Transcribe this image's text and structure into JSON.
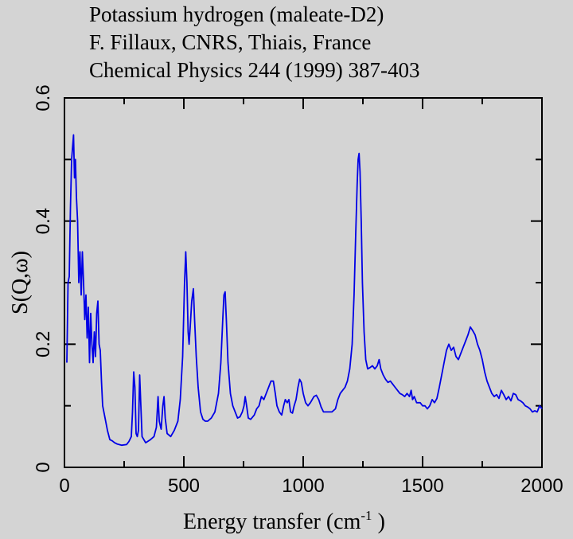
{
  "chart_data": {
    "type": "line",
    "title_lines": [
      "Potassium hydrogen (maleate-D2)",
      "F. Fillaux, CNRS, Thiais, France",
      "Chemical Physics  244 (1999) 387-403"
    ],
    "xlabel": "Energy transfer (cm",
    "xlabel_sup": "-1",
    "xlabel_close": " )",
    "ylabel": "S(Q,ω)",
    "xlim": [
      0,
      2000
    ],
    "ylim": [
      0,
      0.6
    ],
    "xticks": [
      0,
      500,
      1000,
      1500,
      2000
    ],
    "xtick_labels": [
      "0",
      "500",
      "1000",
      "1500",
      "2000"
    ],
    "yticks": [
      0,
      0.2,
      0.4,
      0.6
    ],
    "ytick_labels": [
      "0",
      "0.2",
      "0.4",
      "0.6"
    ],
    "grid": false,
    "series": [
      {
        "name": "S(Q,w)",
        "color": "#0000e6",
        "points": [
          [
            10,
            0.17
          ],
          [
            15,
            0.3
          ],
          [
            20,
            0.31
          ],
          [
            25,
            0.42
          ],
          [
            30,
            0.5
          ],
          [
            34,
            0.52
          ],
          [
            38,
            0.54
          ],
          [
            42,
            0.47
          ],
          [
            46,
            0.5
          ],
          [
            50,
            0.44
          ],
          [
            55,
            0.4
          ],
          [
            60,
            0.3
          ],
          [
            65,
            0.35
          ],
          [
            70,
            0.28
          ],
          [
            75,
            0.35
          ],
          [
            80,
            0.3
          ],
          [
            85,
            0.24
          ],
          [
            90,
            0.28
          ],
          [
            95,
            0.21
          ],
          [
            100,
            0.26
          ],
          [
            105,
            0.17
          ],
          [
            110,
            0.25
          ],
          [
            115,
            0.2
          ],
          [
            120,
            0.17
          ],
          [
            125,
            0.22
          ],
          [
            130,
            0.18
          ],
          [
            135,
            0.25
          ],
          [
            140,
            0.27
          ],
          [
            145,
            0.2
          ],
          [
            150,
            0.19
          ],
          [
            155,
            0.14
          ],
          [
            160,
            0.1
          ],
          [
            170,
            0.08
          ],
          [
            180,
            0.06
          ],
          [
            190,
            0.045
          ],
          [
            200,
            0.043
          ],
          [
            210,
            0.04
          ],
          [
            220,
            0.038
          ],
          [
            240,
            0.036
          ],
          [
            260,
            0.037
          ],
          [
            270,
            0.042
          ],
          [
            280,
            0.05
          ],
          [
            285,
            0.09
          ],
          [
            290,
            0.155
          ],
          [
            295,
            0.13
          ],
          [
            300,
            0.055
          ],
          [
            305,
            0.05
          ],
          [
            310,
            0.06
          ],
          [
            315,
            0.15
          ],
          [
            320,
            0.1
          ],
          [
            325,
            0.05
          ],
          [
            340,
            0.04
          ],
          [
            360,
            0.045
          ],
          [
            375,
            0.05
          ],
          [
            385,
            0.065
          ],
          [
            392,
            0.115
          ],
          [
            397,
            0.075
          ],
          [
            405,
            0.062
          ],
          [
            412,
            0.1
          ],
          [
            417,
            0.115
          ],
          [
            422,
            0.08
          ],
          [
            430,
            0.055
          ],
          [
            445,
            0.05
          ],
          [
            460,
            0.06
          ],
          [
            475,
            0.075
          ],
          [
            485,
            0.11
          ],
          [
            495,
            0.18
          ],
          [
            503,
            0.3
          ],
          [
            508,
            0.35
          ],
          [
            513,
            0.3
          ],
          [
            518,
            0.22
          ],
          [
            522,
            0.2
          ],
          [
            527,
            0.23
          ],
          [
            533,
            0.27
          ],
          [
            540,
            0.29
          ],
          [
            545,
            0.24
          ],
          [
            552,
            0.18
          ],
          [
            560,
            0.13
          ],
          [
            570,
            0.09
          ],
          [
            580,
            0.078
          ],
          [
            590,
            0.075
          ],
          [
            600,
            0.075
          ],
          [
            615,
            0.08
          ],
          [
            630,
            0.09
          ],
          [
            645,
            0.12
          ],
          [
            655,
            0.17
          ],
          [
            663,
            0.24
          ],
          [
            668,
            0.28
          ],
          [
            673,
            0.285
          ],
          [
            678,
            0.24
          ],
          [
            685,
            0.17
          ],
          [
            695,
            0.12
          ],
          [
            705,
            0.1
          ],
          [
            715,
            0.09
          ],
          [
            725,
            0.08
          ],
          [
            735,
            0.082
          ],
          [
            745,
            0.09
          ],
          [
            752,
            0.1
          ],
          [
            757,
            0.115
          ],
          [
            763,
            0.1
          ],
          [
            770,
            0.08
          ],
          [
            780,
            0.078
          ],
          [
            795,
            0.085
          ],
          [
            805,
            0.095
          ],
          [
            815,
            0.1
          ],
          [
            825,
            0.115
          ],
          [
            835,
            0.11
          ],
          [
            845,
            0.12
          ],
          [
            855,
            0.13
          ],
          [
            865,
            0.14
          ],
          [
            875,
            0.14
          ],
          [
            883,
            0.12
          ],
          [
            890,
            0.1
          ],
          [
            900,
            0.09
          ],
          [
            910,
            0.085
          ],
          [
            918,
            0.1
          ],
          [
            925,
            0.11
          ],
          [
            933,
            0.105
          ],
          [
            940,
            0.11
          ],
          [
            947,
            0.09
          ],
          [
            955,
            0.088
          ],
          [
            962,
            0.1
          ],
          [
            970,
            0.11
          ],
          [
            978,
            0.13
          ],
          [
            985,
            0.143
          ],
          [
            992,
            0.138
          ],
          [
            1000,
            0.12
          ],
          [
            1010,
            0.105
          ],
          [
            1020,
            0.1
          ],
          [
            1030,
            0.105
          ],
          [
            1045,
            0.115
          ],
          [
            1055,
            0.117
          ],
          [
            1065,
            0.11
          ],
          [
            1075,
            0.098
          ],
          [
            1085,
            0.09
          ],
          [
            1100,
            0.09
          ],
          [
            1120,
            0.09
          ],
          [
            1135,
            0.095
          ],
          [
            1145,
            0.11
          ],
          [
            1155,
            0.12
          ],
          [
            1165,
            0.125
          ],
          [
            1175,
            0.13
          ],
          [
            1185,
            0.14
          ],
          [
            1195,
            0.16
          ],
          [
            1205,
            0.2
          ],
          [
            1213,
            0.28
          ],
          [
            1220,
            0.38
          ],
          [
            1226,
            0.46
          ],
          [
            1230,
            0.5
          ],
          [
            1234,
            0.51
          ],
          [
            1238,
            0.48
          ],
          [
            1243,
            0.4
          ],
          [
            1248,
            0.3
          ],
          [
            1255,
            0.22
          ],
          [
            1262,
            0.175
          ],
          [
            1270,
            0.16
          ],
          [
            1280,
            0.162
          ],
          [
            1290,
            0.165
          ],
          [
            1300,
            0.16
          ],
          [
            1310,
            0.165
          ],
          [
            1318,
            0.175
          ],
          [
            1325,
            0.16
          ],
          [
            1335,
            0.15
          ],
          [
            1345,
            0.143
          ],
          [
            1355,
            0.138
          ],
          [
            1365,
            0.14
          ],
          [
            1375,
            0.135
          ],
          [
            1385,
            0.13
          ],
          [
            1395,
            0.125
          ],
          [
            1405,
            0.12
          ],
          [
            1415,
            0.118
          ],
          [
            1425,
            0.115
          ],
          [
            1435,
            0.12
          ],
          [
            1445,
            0.115
          ],
          [
            1452,
            0.125
          ],
          [
            1458,
            0.11
          ],
          [
            1465,
            0.115
          ],
          [
            1475,
            0.105
          ],
          [
            1490,
            0.105
          ],
          [
            1500,
            0.1
          ],
          [
            1510,
            0.1
          ],
          [
            1520,
            0.095
          ],
          [
            1530,
            0.1
          ],
          [
            1540,
            0.11
          ],
          [
            1550,
            0.105
          ],
          [
            1560,
            0.112
          ],
          [
            1570,
            0.13
          ],
          [
            1580,
            0.15
          ],
          [
            1590,
            0.17
          ],
          [
            1600,
            0.19
          ],
          [
            1610,
            0.2
          ],
          [
            1620,
            0.19
          ],
          [
            1630,
            0.195
          ],
          [
            1640,
            0.18
          ],
          [
            1650,
            0.175
          ],
          [
            1660,
            0.185
          ],
          [
            1670,
            0.195
          ],
          [
            1680,
            0.205
          ],
          [
            1690,
            0.215
          ],
          [
            1700,
            0.228
          ],
          [
            1710,
            0.222
          ],
          [
            1720,
            0.215
          ],
          [
            1730,
            0.2
          ],
          [
            1740,
            0.19
          ],
          [
            1750,
            0.175
          ],
          [
            1760,
            0.155
          ],
          [
            1770,
            0.14
          ],
          [
            1780,
            0.13
          ],
          [
            1790,
            0.12
          ],
          [
            1800,
            0.115
          ],
          [
            1810,
            0.118
          ],
          [
            1820,
            0.112
          ],
          [
            1830,
            0.125
          ],
          [
            1840,
            0.118
          ],
          [
            1850,
            0.11
          ],
          [
            1860,
            0.115
          ],
          [
            1870,
            0.108
          ],
          [
            1880,
            0.12
          ],
          [
            1890,
            0.118
          ],
          [
            1900,
            0.11
          ],
          [
            1910,
            0.108
          ],
          [
            1920,
            0.105
          ],
          [
            1930,
            0.1
          ],
          [
            1940,
            0.098
          ],
          [
            1950,
            0.095
          ],
          [
            1960,
            0.09
          ],
          [
            1970,
            0.092
          ],
          [
            1980,
            0.09
          ],
          [
            1990,
            0.1
          ],
          [
            2000,
            0.095
          ]
        ]
      }
    ]
  }
}
